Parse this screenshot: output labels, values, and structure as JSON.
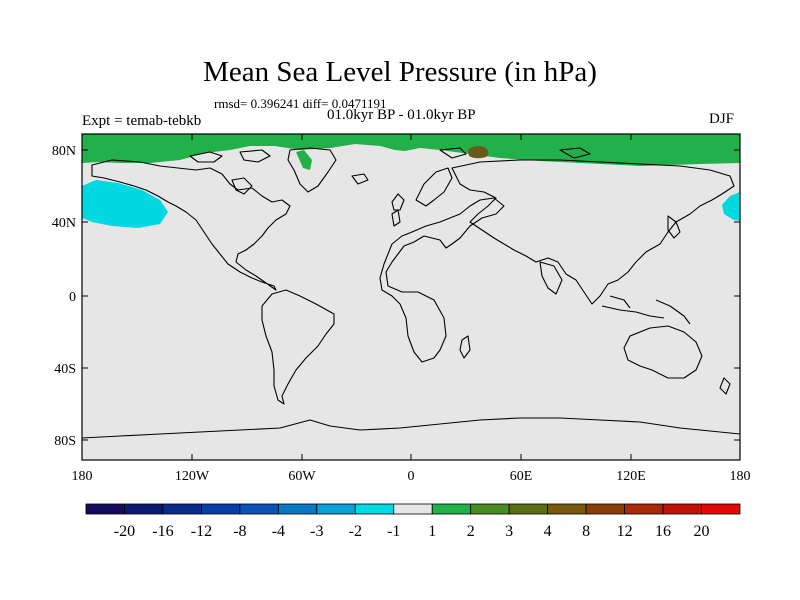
{
  "title": "Mean Sea Level Pressure (in hPa)",
  "stats": "rmsd= 0.396241 diff= 0.0471191",
  "period": "01.0kyr BP - 01.0kyr BP",
  "experiment": "Expt = temab-tebkb",
  "season": "DJF",
  "map": {
    "lat_ticks": [
      "80N",
      "40N",
      "0",
      "40S",
      "80S"
    ],
    "lon_ticks": [
      "180",
      "120W",
      "60W",
      "0",
      "60E",
      "120E",
      "180"
    ],
    "background_color": "#e6e6e6",
    "fields": [
      {
        "name": "arctic-positive-band",
        "range": "1 to 2",
        "color": "#22b04a"
      },
      {
        "name": "arctic-small-patch",
        "range": "3 to 4",
        "color": "#6a5a18"
      },
      {
        "name": "north-pacific-negative",
        "range": "-2 to -1",
        "color": "#00d8e2"
      }
    ]
  },
  "colorbar": {
    "labels": [
      "-20",
      "-16",
      "-12",
      "-8",
      "-4",
      "-3",
      "-2",
      "-1",
      "1",
      "2",
      "3",
      "4",
      "8",
      "12",
      "16",
      "20"
    ],
    "colors": [
      "#160a5c",
      "#0a1872",
      "#0a2a8c",
      "#0a3ea6",
      "#0a54b8",
      "#0a78c2",
      "#0aa2d6",
      "#00d8e2",
      "#e6e6e6",
      "#22b04a",
      "#4a8c22",
      "#5c6e10",
      "#7a5a0a",
      "#8c3e0a",
      "#a82a0a",
      "#c0140a",
      "#e00a0a"
    ]
  }
}
